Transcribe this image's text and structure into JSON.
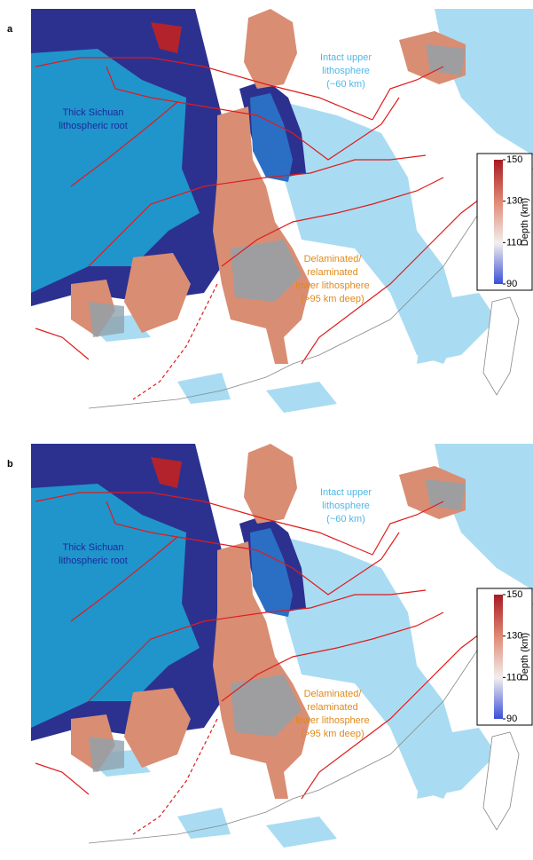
{
  "panels": [
    {
      "label": "a",
      "annotations": {
        "intact": [
          "Intact upper",
          "lithosphere",
          "(~60 km)"
        ],
        "sichuan": [
          "Thick Sichuan",
          "lithospheric root"
        ],
        "delaminated": [
          "Delaminated/",
          "relaminated",
          "lower lithosphere",
          "(>95 km deep)"
        ]
      },
      "colorbar": {
        "label": "Depth (km)",
        "ticks": [
          90,
          110,
          130,
          150
        ]
      }
    },
    {
      "label": "b",
      "annotations": {
        "intact": [
          "Intact upper",
          "lithosphere",
          "(~60 km)"
        ],
        "sichuan": [
          "Thick Sichuan",
          "lithospheric root"
        ],
        "delaminated": [
          "Delaminated/",
          "relaminated",
          "lower lithosphere",
          "(>95 km deep)"
        ]
      },
      "colorbar": {
        "label": "Depth (km)",
        "ticks": [
          90,
          110,
          130,
          150
        ]
      }
    }
  ]
}
